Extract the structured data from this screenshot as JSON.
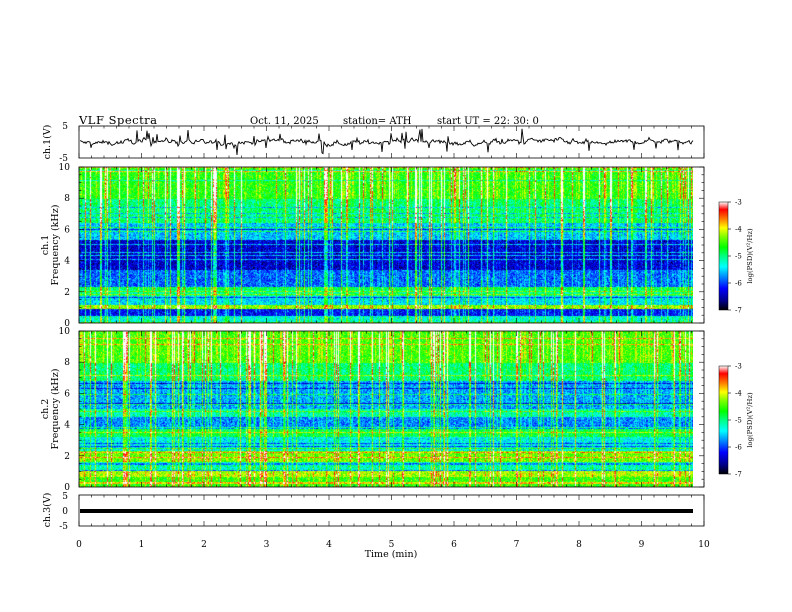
{
  "header": {
    "title": "VLF  Spectra",
    "date": "Oct. 11, 2025",
    "station": "station= ATH",
    "start": "start  UT  =   22: 30: 0"
  },
  "chart_data": [
    {
      "type": "line",
      "name": "ch1-waveform",
      "ylabel": "ch.1(V)",
      "ylim": [
        -5,
        5
      ],
      "yticks": [
        -5,
        5
      ],
      "xlim": [
        0,
        10
      ],
      "xticks": [
        0,
        1,
        2,
        3,
        4,
        5,
        6,
        7,
        8,
        9,
        10
      ],
      "data_extent_min": 9.83
    },
    {
      "type": "heatmap",
      "name": "ch1-spectrogram",
      "ylabel": "Frequency  (kHz)",
      "ylabel_channel": "ch.1",
      "ylim": [
        0,
        10
      ],
      "yticks": [
        0,
        2,
        4,
        6,
        8,
        10
      ],
      "xlim": [
        0,
        10
      ],
      "colorbar": {
        "label": "log(PSD)(V²/Hz)",
        "ticks": [
          -3,
          -4,
          -5,
          -6,
          -7
        ],
        "range": [
          -7,
          -3
        ]
      },
      "bands": [
        {
          "f_range": [
            0.0,
            0.4
          ],
          "level": -5.3
        },
        {
          "f_range": [
            0.4,
            0.9
          ],
          "level": -6.2
        },
        {
          "f_range": [
            0.9,
            1.1
          ],
          "level": -4.3
        },
        {
          "f_range": [
            1.1,
            1.7
          ],
          "level": -5.5
        },
        {
          "f_range": [
            1.7,
            2.1
          ],
          "level": -5.1
        },
        {
          "f_range": [
            2.1,
            2.3
          ],
          "level": -4.9
        },
        {
          "f_range": [
            2.3,
            3.4
          ],
          "level": -5.9
        },
        {
          "f_range": [
            3.4,
            5.3
          ],
          "level": -6.4
        },
        {
          "f_range": [
            5.3,
            6.5
          ],
          "level": -5.6
        },
        {
          "f_range": [
            6.5,
            8.0
          ],
          "level": -5.0
        },
        {
          "f_range": [
            8.0,
            10.0
          ],
          "level": -4.6
        }
      ]
    },
    {
      "type": "heatmap",
      "name": "ch2-spectrogram",
      "ylabel": "Frequency  (kHz)",
      "ylabel_channel": "ch.2",
      "ylim": [
        0,
        10
      ],
      "yticks": [
        0,
        2,
        4,
        6,
        8,
        10
      ],
      "xlim": [
        0,
        10
      ],
      "colorbar": {
        "label": "log(PSD)(V²/Hz)",
        "ticks": [
          -3,
          -4,
          -5,
          -6,
          -7
        ],
        "range": [
          -7,
          -3
        ]
      },
      "bands": [
        {
          "f_range": [
            0.0,
            0.6
          ],
          "level": -4.6
        },
        {
          "f_range": [
            0.6,
            1.0
          ],
          "level": -4.2
        },
        {
          "f_range": [
            1.0,
            1.6
          ],
          "level": -5.2
        },
        {
          "f_range": [
            1.6,
            2.3
          ],
          "level": -4.4
        },
        {
          "f_range": [
            2.3,
            3.2
          ],
          "level": -5.4
        },
        {
          "f_range": [
            3.2,
            3.7
          ],
          "level": -4.9
        },
        {
          "f_range": [
            3.7,
            4.5
          ],
          "level": -5.8
        },
        {
          "f_range": [
            4.5,
            5.0
          ],
          "level": -5.2
        },
        {
          "f_range": [
            5.0,
            6.8
          ],
          "level": -5.7
        },
        {
          "f_range": [
            6.8,
            8.0
          ],
          "level": -5.0
        },
        {
          "f_range": [
            8.0,
            10.0
          ],
          "level": -4.5
        }
      ]
    },
    {
      "type": "line",
      "name": "ch3-waveform",
      "ylabel": "ch.3(V)",
      "ylim": [
        -5,
        5
      ],
      "yticks": [
        -5,
        0,
        5
      ],
      "xlabel": "Time  (min)",
      "xlim": [
        0,
        10
      ],
      "xticks": [
        0,
        1,
        2,
        3,
        4,
        5,
        6,
        7,
        8,
        9,
        10
      ]
    }
  ],
  "colors": {
    "colormap": [
      "#000000",
      "#000080",
      "#0000ff",
      "#0080ff",
      "#00ffff",
      "#00ff80",
      "#00ff00",
      "#80ff00",
      "#ffff00",
      "#ff8000",
      "#ff0000",
      "#ffffff"
    ],
    "axis": "#000000",
    "waveform": "#000000"
  }
}
